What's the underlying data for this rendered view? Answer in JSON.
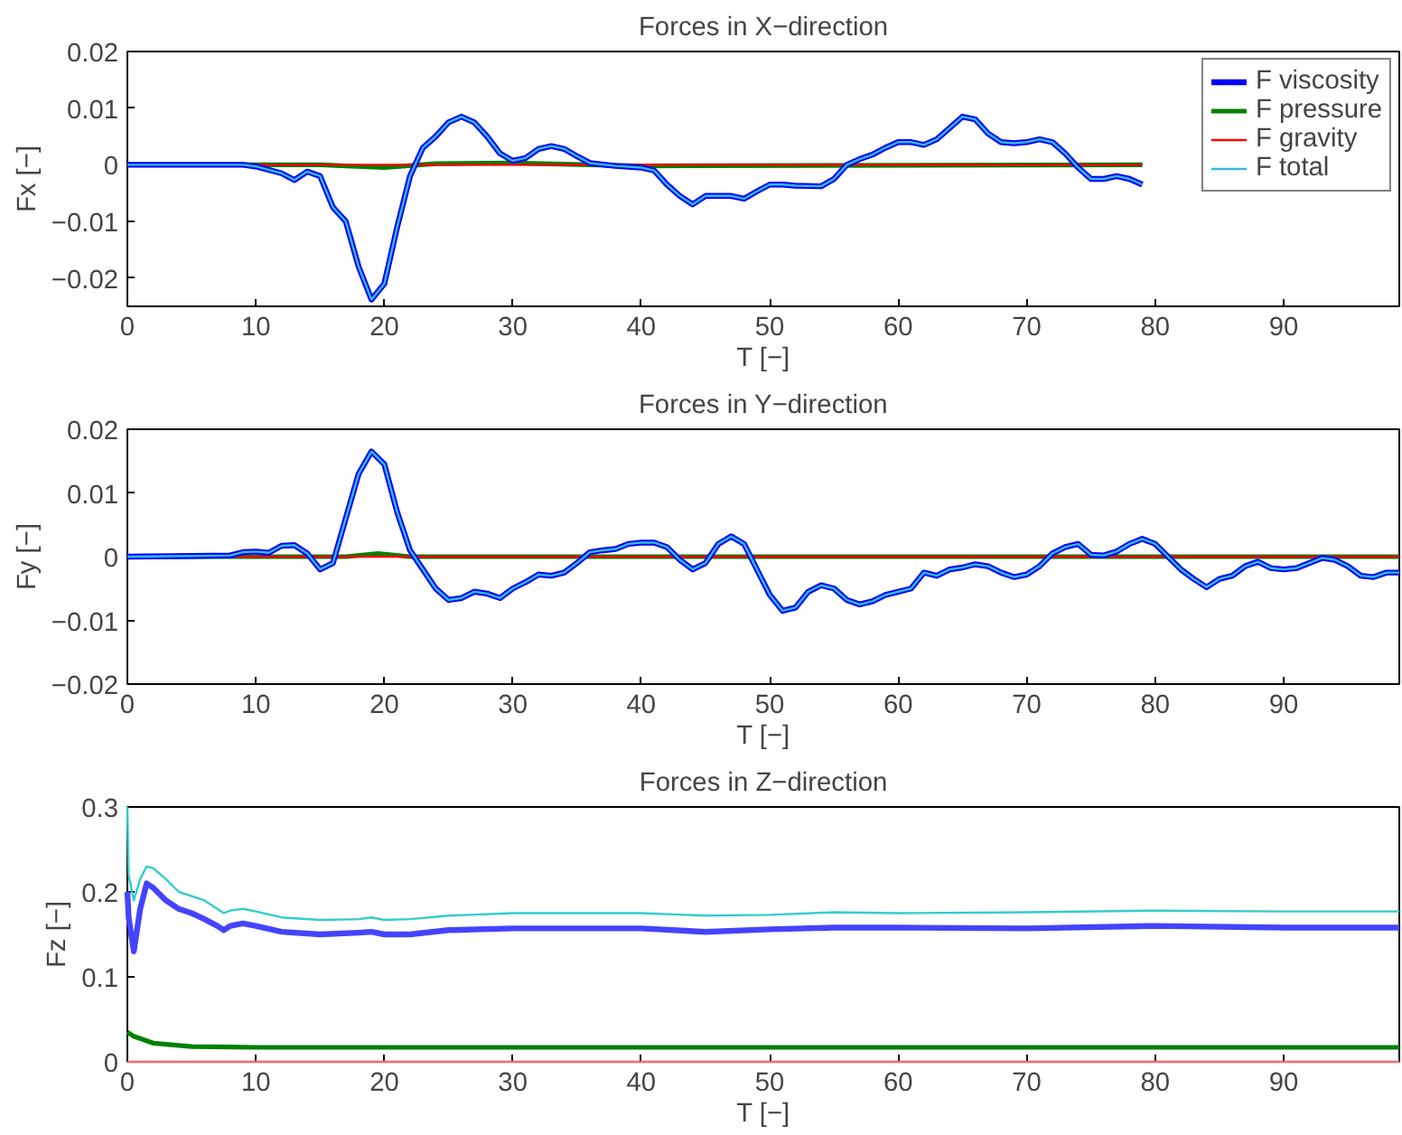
{
  "chart_data": [
    {
      "type": "line",
      "title": "Forces in X−direction",
      "xlabel": "T [−]",
      "ylabel": "Fx [−]",
      "xlim": [
        0,
        99
      ],
      "ylim": [
        -0.025,
        0.02
      ],
      "xticks": [
        0,
        10,
        20,
        30,
        40,
        50,
        60,
        70,
        80,
        90
      ],
      "yticks": [
        -0.02,
        -0.01,
        0,
        0.01,
        0.02
      ],
      "grid": false,
      "legend": "top right",
      "x": [
        0,
        5,
        9,
        10,
        12,
        13,
        14,
        15,
        16,
        17,
        18,
        19,
        20,
        21,
        22,
        23,
        24,
        25,
        26,
        27,
        28,
        29,
        30,
        31,
        32,
        33,
        34,
        35,
        36,
        38,
        40,
        41,
        42,
        43,
        44,
        45,
        46,
        47,
        48,
        49,
        50,
        51,
        52,
        54,
        55,
        56,
        57,
        58,
        59,
        60,
        61,
        62,
        63,
        64,
        65,
        66,
        67,
        68,
        69,
        70,
        71,
        72,
        73,
        74,
        75,
        76,
        77,
        78,
        79
      ],
      "series": [
        {
          "name": "F viscosity",
          "color": "#0000ff",
          "values": [
            0,
            0,
            0,
            -0.0003,
            -0.0015,
            -0.0027,
            -0.0012,
            -0.002,
            -0.0075,
            -0.01,
            -0.018,
            -0.0238,
            -0.021,
            -0.011,
            -0.002,
            0.003,
            0.005,
            0.0075,
            0.0085,
            0.0075,
            0.005,
            0.002,
            0.0007,
            0.0012,
            0.0028,
            0.0033,
            0.0028,
            0.0015,
            0.0003,
            -0.0002,
            -0.0005,
            -0.001,
            -0.0035,
            -0.0055,
            -0.007,
            -0.0055,
            -0.0055,
            -0.0055,
            -0.006,
            -0.0047,
            -0.0035,
            -0.0035,
            -0.0037,
            -0.0038,
            -0.0025,
            0,
            0.001,
            0.0018,
            0.003,
            0.004,
            0.004,
            0.0035,
            0.0045,
            0.0065,
            0.0085,
            0.008,
            0.0055,
            0.004,
            0.0038,
            0.004,
            0.0045,
            0.004,
            0.002,
            -0.0005,
            -0.0025,
            -0.0025,
            -0.002,
            -0.0025,
            -0.0035
          ]
        },
        {
          "name": "F pressure",
          "color": "#008000",
          "x": [
            0,
            15,
            20,
            24,
            30,
            36,
            40,
            79
          ],
          "values": [
            0,
            0,
            -0.0005,
            0.0002,
            0.0003,
            0,
            -0.0002,
            0
          ]
        },
        {
          "name": "F gravity",
          "color": "#ff0000",
          "x": [
            0,
            79
          ],
          "values": [
            0,
            0
          ]
        },
        {
          "name": "F total",
          "color": "#33bbdd",
          "values": [
            0,
            0,
            0,
            -0.0003,
            -0.0015,
            -0.0027,
            -0.0012,
            -0.002,
            -0.0075,
            -0.01,
            -0.018,
            -0.0238,
            -0.021,
            -0.011,
            -0.002,
            0.003,
            0.005,
            0.0075,
            0.0085,
            0.0075,
            0.005,
            0.002,
            0.0007,
            0.0012,
            0.0028,
            0.0033,
            0.0028,
            0.0015,
            0.0003,
            -0.0002,
            -0.0005,
            -0.001,
            -0.0035,
            -0.0055,
            -0.007,
            -0.0055,
            -0.0055,
            -0.0055,
            -0.006,
            -0.0047,
            -0.0035,
            -0.0035,
            -0.0037,
            -0.0038,
            -0.0025,
            0,
            0.001,
            0.0018,
            0.003,
            0.004,
            0.004,
            0.0035,
            0.0045,
            0.0065,
            0.0085,
            0.008,
            0.0055,
            0.004,
            0.0038,
            0.004,
            0.0045,
            0.004,
            0.002,
            -0.0005,
            -0.0025,
            -0.0025,
            -0.002,
            -0.0025,
            -0.0035
          ]
        }
      ]
    },
    {
      "type": "line",
      "title": "Forces in Y−direction",
      "xlabel": "T [−]",
      "ylabel": "Fy [−]",
      "xlim": [
        0,
        99
      ],
      "ylim": [
        -0.02,
        0.02
      ],
      "xticks": [
        0,
        10,
        20,
        30,
        40,
        50,
        60,
        70,
        80,
        90
      ],
      "yticks": [
        -0.02,
        -0.01,
        0,
        0.01,
        0.02
      ],
      "grid": false,
      "x": [
        0,
        5,
        8,
        9,
        10,
        11,
        12,
        13,
        14,
        15,
        16,
        17,
        18,
        19,
        20,
        21,
        22,
        23,
        24,
        25,
        26,
        27,
        28,
        29,
        30,
        31,
        32,
        33,
        34,
        35,
        36,
        37,
        38,
        39,
        40,
        41,
        42,
        43,
        44,
        45,
        46,
        47,
        48,
        49,
        50,
        51,
        52,
        53,
        54,
        55,
        56,
        57,
        58,
        59,
        60,
        61,
        62,
        63,
        64,
        65,
        66,
        67,
        68,
        69,
        70,
        71,
        72,
        73,
        74,
        75,
        76,
        77,
        78,
        79,
        80,
        81,
        82,
        83,
        84,
        85,
        86,
        87,
        88,
        89,
        90,
        91,
        92,
        93,
        94,
        95,
        96,
        97,
        98,
        99
      ],
      "series": [
        {
          "color": "#0000ff",
          "values": [
            0,
            0.0001,
            0.0002,
            0.0007,
            0.0008,
            0.0006,
            0.0017,
            0.0018,
            0.0005,
            -0.002,
            -0.001,
            0.006,
            0.013,
            0.0165,
            0.0145,
            0.007,
            0.001,
            -0.002,
            -0.005,
            -0.0068,
            -0.0065,
            -0.0055,
            -0.0058,
            -0.0065,
            -0.005,
            -0.004,
            -0.0028,
            -0.003,
            -0.0025,
            -0.001,
            0.0007,
            0.001,
            0.0012,
            0.002,
            0.0022,
            0.0022,
            0.0015,
            -0.0005,
            -0.002,
            -0.001,
            0.002,
            0.0032,
            0.002,
            -0.002,
            -0.006,
            -0.0085,
            -0.008,
            -0.0055,
            -0.0045,
            -0.005,
            -0.0068,
            -0.0075,
            -0.007,
            -0.006,
            -0.0055,
            -0.005,
            -0.0025,
            -0.003,
            -0.002,
            -0.0017,
            -0.0012,
            -0.0015,
            -0.0025,
            -0.0032,
            -0.0028,
            -0.0015,
            0.0005,
            0.0015,
            0.002,
            0.0003,
            0.0002,
            0.0008,
            0.002,
            0.0028,
            0.002,
            0,
            -0.002,
            -0.0035,
            -0.0048,
            -0.0035,
            -0.003,
            -0.0015,
            -0.0008,
            -0.0018,
            -0.002,
            -0.0018,
            -0.001,
            -0.0002,
            -0.0005,
            -0.0015,
            -0.003,
            -0.0032,
            -0.0025,
            -0.0025
          ]
        },
        {
          "color": "#008000",
          "x": [
            0,
            17,
            19.5,
            22,
            99
          ],
          "values": [
            0,
            0,
            0.0005,
            0,
            0
          ]
        },
        {
          "color": "#ff0000",
          "x": [
            0,
            99
          ],
          "values": [
            0,
            0
          ]
        },
        {
          "color": "#33bbdd",
          "values": [
            0,
            0.0001,
            0.0002,
            0.0007,
            0.0008,
            0.0006,
            0.0017,
            0.0018,
            0.0005,
            -0.002,
            -0.001,
            0.006,
            0.013,
            0.0165,
            0.0145,
            0.007,
            0.001,
            -0.002,
            -0.005,
            -0.0068,
            -0.0065,
            -0.0055,
            -0.0058,
            -0.0065,
            -0.005,
            -0.004,
            -0.0028,
            -0.003,
            -0.0025,
            -0.001,
            0.0007,
            0.001,
            0.0012,
            0.002,
            0.0022,
            0.0022,
            0.0015,
            -0.0005,
            -0.002,
            -0.001,
            0.002,
            0.0032,
            0.002,
            -0.002,
            -0.006,
            -0.0085,
            -0.008,
            -0.0055,
            -0.0045,
            -0.005,
            -0.0068,
            -0.0075,
            -0.007,
            -0.006,
            -0.0055,
            -0.005,
            -0.0025,
            -0.003,
            -0.002,
            -0.0017,
            -0.0012,
            -0.0015,
            -0.0025,
            -0.0032,
            -0.0028,
            -0.0015,
            0.0005,
            0.0015,
            0.002,
            0.0003,
            0.0002,
            0.0008,
            0.002,
            0.0028,
            0.002,
            0,
            -0.002,
            -0.0035,
            -0.0048,
            -0.0035,
            -0.003,
            -0.0015,
            -0.0008,
            -0.0018,
            -0.002,
            -0.0018,
            -0.001,
            -0.0002,
            -0.0005,
            -0.0015,
            -0.003,
            -0.0032,
            -0.0025,
            -0.0025
          ]
        }
      ]
    },
    {
      "type": "line",
      "title": "Forces in Z−direction",
      "xlabel": "T [−]",
      "ylabel": "Fz [−]",
      "xlim": [
        0,
        99
      ],
      "ylim": [
        0,
        0.3
      ],
      "xticks": [
        0,
        10,
        20,
        30,
        40,
        50,
        60,
        70,
        80,
        90
      ],
      "yticks": [
        0,
        0.1,
        0.2,
        0.3
      ],
      "grid": false,
      "x": [
        0,
        0.1,
        0.5,
        1,
        1.5,
        2,
        3,
        4,
        5,
        6,
        7,
        7.5,
        8,
        9,
        10,
        12,
        15,
        18,
        19,
        20,
        22,
        25,
        30,
        40,
        45,
        50,
        55,
        60,
        70,
        80,
        90,
        99
      ],
      "series": [
        {
          "color": "#4444ff",
          "values": [
            0.2,
            0.17,
            0.13,
            0.18,
            0.21,
            0.205,
            0.19,
            0.18,
            0.175,
            0.168,
            0.16,
            0.155,
            0.16,
            0.163,
            0.16,
            0.153,
            0.15,
            0.152,
            0.153,
            0.15,
            0.15,
            0.155,
            0.157,
            0.157,
            0.153,
            0.156,
            0.158,
            0.158,
            0.157,
            0.16,
            0.158,
            0.158
          ]
        },
        {
          "color": "#008000",
          "x": [
            0,
            0.5,
            2,
            5,
            10,
            99
          ],
          "values": [
            0.035,
            0.03,
            0.022,
            0.018,
            0.017,
            0.017
          ]
        },
        {
          "color": "#ff6666",
          "x": [
            0,
            99
          ],
          "values": [
            0,
            0
          ]
        },
        {
          "color": "#33cccc",
          "values": [
            0.3,
            0.22,
            0.19,
            0.215,
            0.23,
            0.228,
            0.215,
            0.2,
            0.195,
            0.19,
            0.18,
            0.175,
            0.178,
            0.18,
            0.177,
            0.17,
            0.167,
            0.168,
            0.17,
            0.167,
            0.168,
            0.172,
            0.175,
            0.175,
            0.172,
            0.173,
            0.176,
            0.175,
            0.176,
            0.178,
            0.177,
            0.177
          ]
        }
      ]
    }
  ]
}
